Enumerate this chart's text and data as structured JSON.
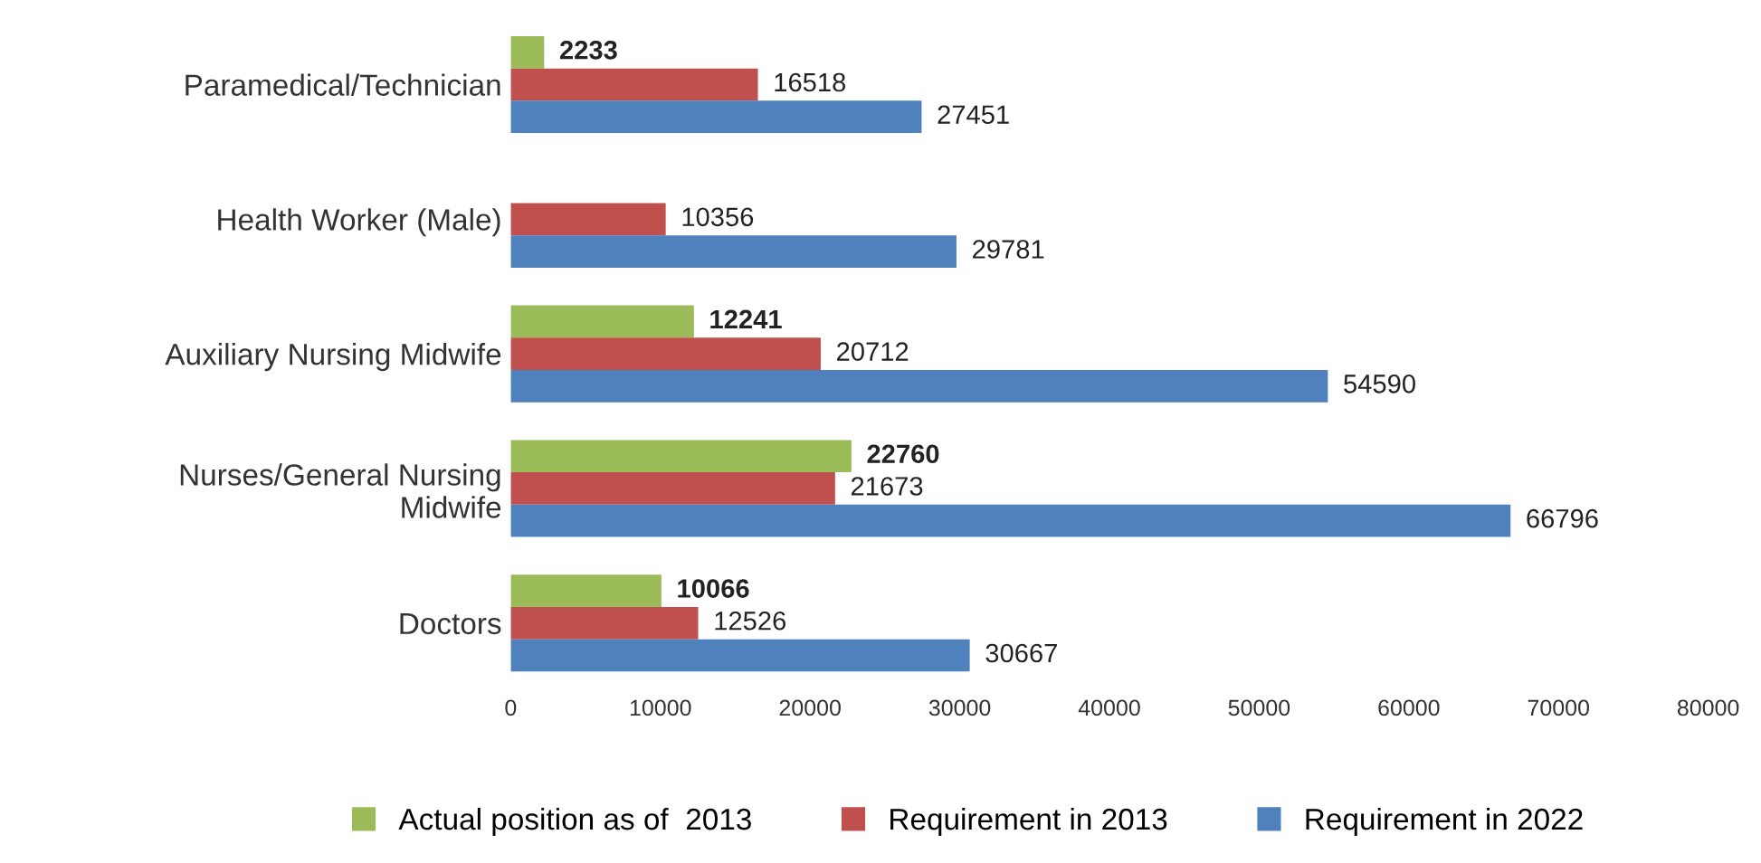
{
  "chart_data": {
    "type": "bar",
    "orientation": "horizontal",
    "categories": [
      "Paramedical/Technician",
      "Health Worker (Male)",
      "Auxiliary Nursing Midwife",
      "Nurses/General Nursing\nMidwife",
      "Doctors"
    ],
    "series": [
      {
        "name": "Actual position as of  2013",
        "color": "#9bbb59",
        "values": [
          2233,
          null,
          12241,
          22760,
          10066
        ]
      },
      {
        "name": "Requirement in 2013",
        "color": "#c0504d",
        "values": [
          16518,
          10356,
          20712,
          21673,
          12526
        ]
      },
      {
        "name": "Requirement in 2022",
        "color": "#4f81bd",
        "values": [
          27451,
          29781,
          54590,
          66796,
          30667
        ]
      }
    ],
    "xlim": [
      0,
      80000
    ],
    "xticks": [
      0,
      10000,
      20000,
      30000,
      40000,
      50000,
      60000,
      70000,
      80000
    ],
    "data_labels": true,
    "grid": false,
    "legend": "bottom"
  }
}
